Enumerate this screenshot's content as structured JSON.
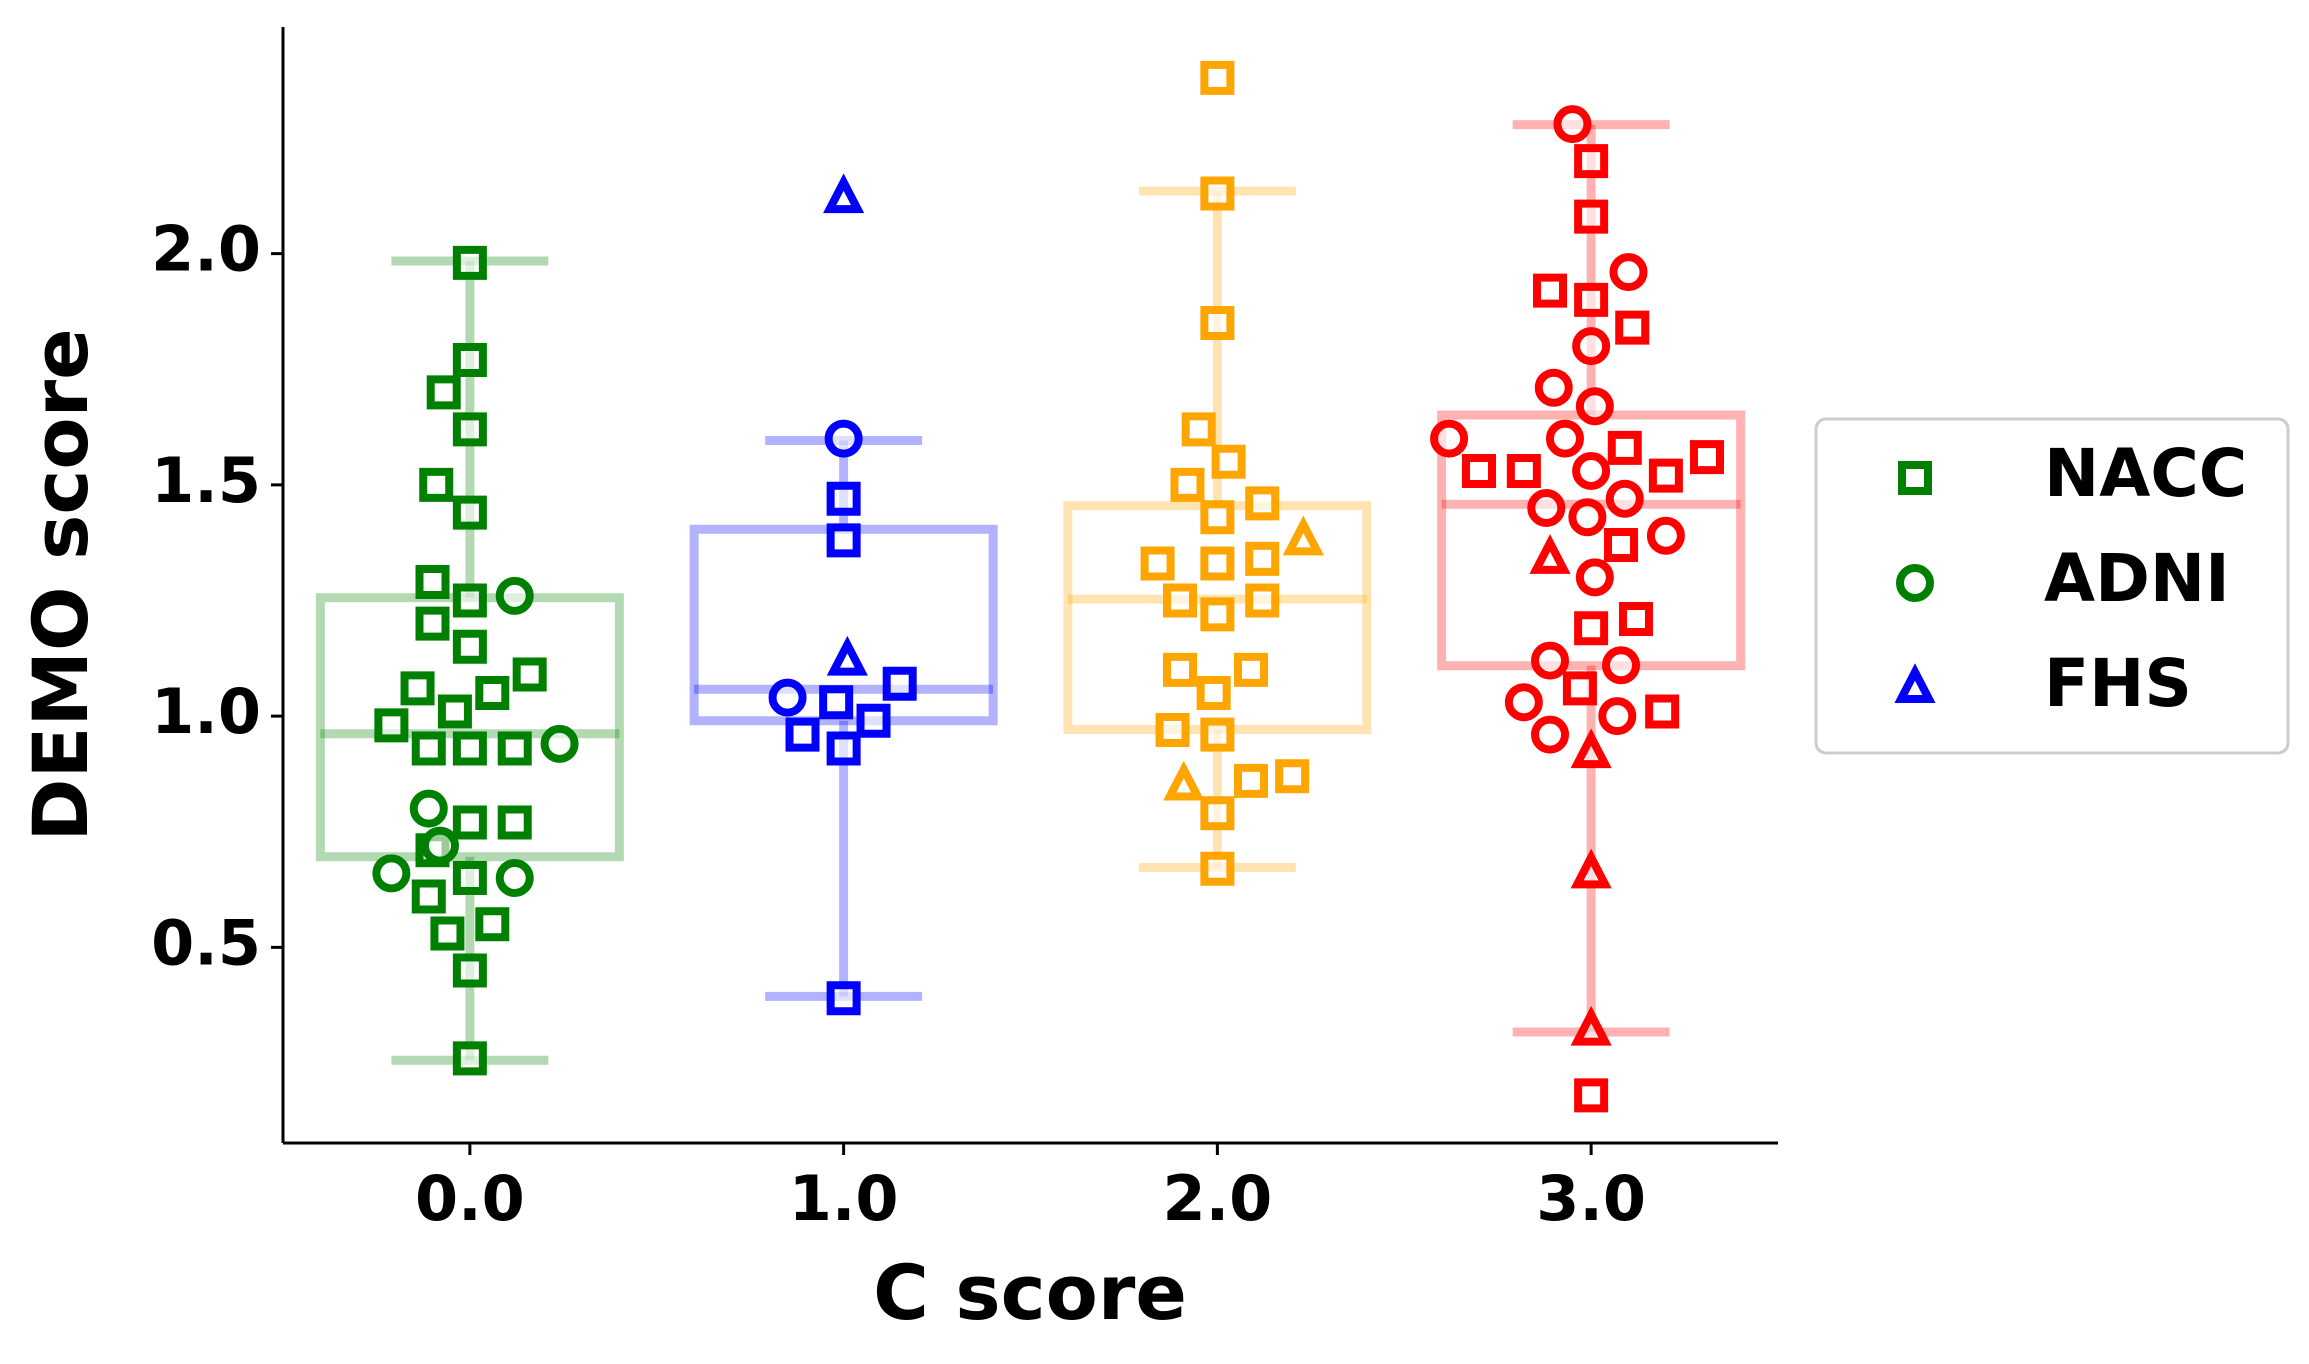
{
  "chart_data": {
    "type": "box",
    "xlabel": "C score",
    "ylabel": "DEMO score",
    "xlim": [
      -0.5,
      3.5
    ],
    "ylim": [
      0.077,
      2.49
    ],
    "xticks": [
      {
        "value": 0,
        "label": "0.0"
      },
      {
        "value": 1,
        "label": "1.0"
      },
      {
        "value": 2,
        "label": "2.0"
      },
      {
        "value": 3,
        "label": "3.0"
      }
    ],
    "yticks": [
      0.5,
      {
        "value": 1,
        "label": "1.0"
      },
      1.5,
      {
        "value": 2,
        "label": "2.0"
      }
    ],
    "legend": "right",
    "boxes": [
      {
        "x": 0,
        "color": "#008000",
        "whislo": 0.256,
        "q1": 0.696,
        "med": 0.962,
        "q3": 1.256,
        "whishi": 1.984
      },
      {
        "x": 1,
        "color": "#0000ff",
        "whislo": 0.394,
        "q1": 0.99,
        "med": 1.058,
        "q3": 1.404,
        "whishi": 1.596
      },
      {
        "x": 2,
        "color": "#ffa500",
        "whislo": 0.673,
        "q1": 0.971,
        "med": 1.253,
        "q3": 1.455,
        "whishi": 2.135
      },
      {
        "x": 3,
        "color": "#ff0000",
        "whislo": 0.317,
        "q1": 1.109,
        "med": 1.458,
        "q3": 1.651,
        "whishi": 2.279
      }
    ],
    "series": [
      {
        "name": "NACC",
        "marker": "square",
        "color": "#008000",
        "x": [
          0,
          0,
          -0.07,
          0,
          -0.09,
          0,
          -0.1,
          0,
          -0.1,
          0,
          0.16,
          -0.14,
          0.06,
          -0.04,
          -0.21,
          -0.11,
          0,
          0.12,
          0,
          0.12,
          -0.1,
          0,
          -0.11,
          -0.06,
          0.06,
          0,
          0,
          1,
          1,
          1.15,
          0.98,
          1.08,
          0.89,
          1,
          1,
          2,
          2,
          2,
          1.95,
          2.03,
          1.92,
          2.12,
          2,
          1.84,
          2,
          2.12,
          1.9,
          2.12,
          2,
          1.9,
          2.09,
          1.99,
          1.88,
          2,
          2.09,
          2.2,
          2,
          2,
          3,
          3,
          2.89,
          3,
          3.11,
          3.09,
          3.31,
          2.7,
          2.82,
          3.2,
          3.08,
          3,
          3.12,
          2.97,
          3.19,
          3
        ],
        "values": [
          1.98,
          1.77,
          1.7,
          1.62,
          1.5,
          1.44,
          1.29,
          1.25,
          1.2,
          1.15,
          1.09,
          1.06,
          1.05,
          1.01,
          0.98,
          0.93,
          0.93,
          0.93,
          0.77,
          0.77,
          0.71,
          0.65,
          0.61,
          0.53,
          0.55,
          0.45,
          0.26,
          1.47,
          1.38,
          1.07,
          1.03,
          0.99,
          0.96,
          0.93,
          0.39,
          2.38,
          2.13,
          1.85,
          1.62,
          1.55,
          1.5,
          1.46,
          1.43,
          1.33,
          1.33,
          1.34,
          1.25,
          1.25,
          1.22,
          1.1,
          1.1,
          1.05,
          0.97,
          0.96,
          0.86,
          0.87,
          0.79,
          0.67,
          2.2,
          2.08,
          1.92,
          1.9,
          1.84,
          1.58,
          1.56,
          1.53,
          1.53,
          1.52,
          1.37,
          1.19,
          1.21,
          1.06,
          1.01,
          0.18
        ]
      },
      {
        "name": "ADNI",
        "marker": "circle",
        "color": "#008000",
        "x": [
          0.12,
          0.24,
          -0.11,
          -0.21,
          0.12,
          -0.08,
          1,
          0.85,
          2.95,
          3.1,
          3,
          2.9,
          3.01,
          2.62,
          2.93,
          3,
          3.09,
          2.88,
          2.99,
          3.2,
          3.01,
          2.89,
          3.08,
          2.82,
          3.07,
          2.89
        ],
        "values": [
          1.26,
          0.94,
          0.8,
          0.66,
          0.65,
          0.72,
          1.6,
          1.04,
          2.28,
          1.96,
          1.8,
          1.71,
          1.67,
          1.6,
          1.6,
          1.53,
          1.47,
          1.45,
          1.43,
          1.39,
          1.3,
          1.12,
          1.11,
          1.03,
          1.0,
          0.96
        ]
      },
      {
        "name": "FHS",
        "marker": "triangle",
        "color": "#0000ff",
        "x": [
          1,
          1.01,
          2.23,
          1.91,
          2.89,
          3,
          3,
          3
        ],
        "values": [
          2.12,
          1.12,
          1.38,
          0.85,
          1.34,
          0.92,
          0.66,
          0.32
        ]
      }
    ]
  }
}
